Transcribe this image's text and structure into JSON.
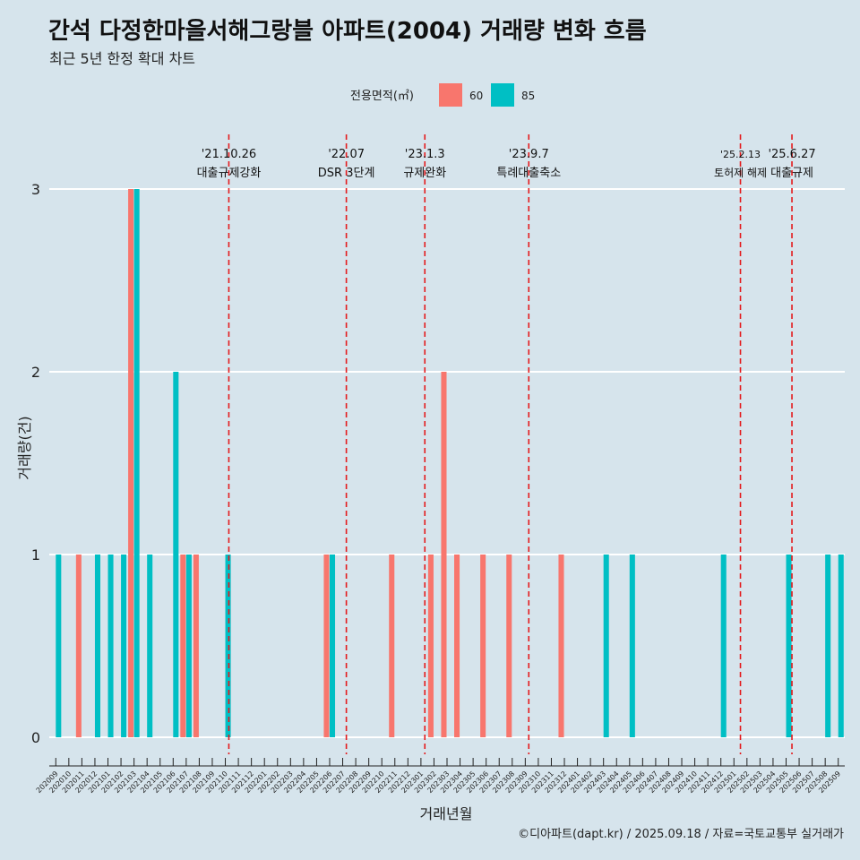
{
  "title": "간석 다정한마을서해그랑블 아파트(2004) 거래량 변화 흐름",
  "subtitle": "최근 5년 한정 확대 차트",
  "caption": "©디아파트(dapt.kr) / 2025.09.18 / 자료=국토교통부 실거래가",
  "colors": {
    "60": "#f8766d",
    "85": "#00bfc4",
    "event_line": "#e41a1c",
    "background": "#d6e4ec",
    "grid": "#ffffff"
  },
  "chart_data": {
    "type": "bar",
    "xlabel": "거래년월",
    "ylabel": "거래량(건)",
    "ylim": [
      0,
      3
    ],
    "yticks": [
      0,
      1,
      2,
      3
    ],
    "grid": true,
    "legend": {
      "title": "전용면적(㎡)",
      "position": "top"
    },
    "categories": [
      "202009",
      "202010",
      "202011",
      "202012",
      "202101",
      "202102",
      "202103",
      "202104",
      "202105",
      "202106",
      "202107",
      "202108",
      "202109",
      "202110",
      "202111",
      "202112",
      "202201",
      "202202",
      "202203",
      "202204",
      "202205",
      "202206",
      "202207",
      "202208",
      "202209",
      "202210",
      "202211",
      "202212",
      "202301",
      "202302",
      "202303",
      "202304",
      "202305",
      "202306",
      "202307",
      "202308",
      "202309",
      "202310",
      "202311",
      "202312",
      "202401",
      "202402",
      "202403",
      "202404",
      "202405",
      "202406",
      "202407",
      "202408",
      "202409",
      "202410",
      "202411",
      "202412",
      "202501",
      "202502",
      "202503",
      "202504",
      "202505",
      "202506",
      "202507",
      "202508",
      "202509"
    ],
    "series": [
      {
        "name": "60",
        "values": [
          0,
          0,
          1,
          0,
          0,
          0,
          3,
          0,
          0,
          0,
          1,
          1,
          0,
          0,
          0,
          0,
          0,
          0,
          0,
          0,
          0,
          1,
          0,
          0,
          0,
          0,
          1,
          0,
          0,
          1,
          2,
          1,
          0,
          1,
          0,
          1,
          0,
          0,
          0,
          1,
          0,
          0,
          0,
          0,
          0,
          0,
          0,
          0,
          0,
          0,
          0,
          0,
          0,
          0,
          0,
          0,
          0,
          0,
          0,
          0,
          0
        ]
      },
      {
        "name": "85",
        "values": [
          1,
          0,
          0,
          1,
          1,
          1,
          3,
          1,
          0,
          2,
          1,
          0,
          0,
          1,
          0,
          0,
          0,
          0,
          0,
          0,
          0,
          1,
          0,
          0,
          0,
          0,
          0,
          0,
          0,
          0,
          0,
          0,
          0,
          0,
          0,
          0,
          0,
          0,
          0,
          0,
          0,
          0,
          1,
          0,
          1,
          0,
          0,
          0,
          0,
          0,
          0,
          1,
          0,
          0,
          0,
          0,
          1,
          0,
          0,
          1,
          1
        ]
      }
    ],
    "events": [
      {
        "date": "'21.10.26",
        "label": "대출규제강화",
        "pos": 13.27
      },
      {
        "date": "'22.07",
        "label": "DSR 3단계",
        "pos": 22.28
      },
      {
        "date": "'23.1.3",
        "label": "규제완화",
        "pos": 28.3
      },
      {
        "date": "'23.9.7",
        "label": "특례대출축소",
        "pos": 36.27
      },
      {
        "date": "'25.2.13",
        "label": "토허제 해제",
        "pos": 52.5
      },
      {
        "date": "'25.6.27",
        "label": "대출규제",
        "pos": 56.45
      }
    ]
  }
}
